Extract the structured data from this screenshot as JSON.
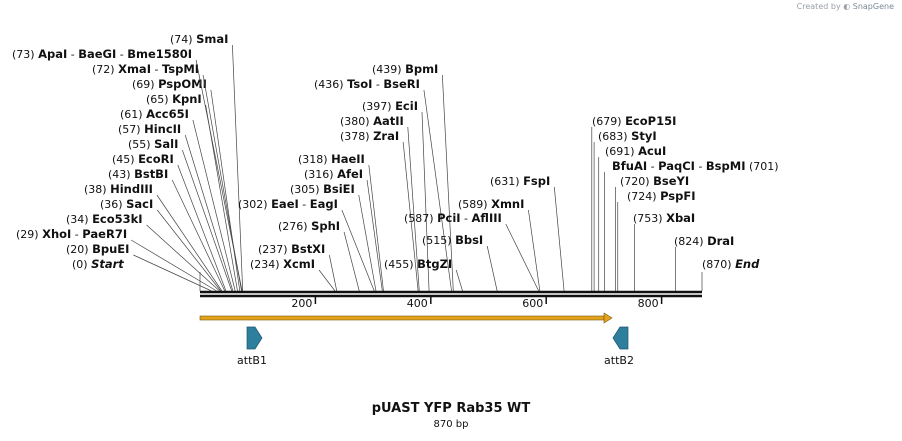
{
  "credit": {
    "prefix": "Created by",
    "brand": "SnapGene"
  },
  "title": "pUAST YFP Rab35 WT",
  "length_label": "870 bp",
  "length": 870,
  "site_rows": [
    {
      "items": [
        {
          "name": "Start",
          "pos": "(0)",
          "bp": 0,
          "italic": true
        }
      ]
    },
    {
      "items": [
        {
          "name": "BpuEI",
          "pos": "(20)",
          "bp": 20
        }
      ]
    },
    {
      "items": [
        {
          "name": "XhoI",
          "pos": "(29)",
          "bp": 29
        },
        {
          "name": "PaeR7I",
          "bp": 29
        }
      ]
    },
    {
      "items": [
        {
          "name": "Eco53kI",
          "pos": "(34)",
          "bp": 34
        }
      ]
    },
    {
      "items": [
        {
          "name": "SacI",
          "pos": "(36)",
          "bp": 36
        }
      ]
    },
    {
      "items": [
        {
          "name": "HindIII",
          "pos": "(38)",
          "bp": 38
        }
      ]
    },
    {
      "items": [
        {
          "name": "BstBI",
          "pos": "(43)",
          "bp": 43
        }
      ]
    },
    {
      "items": [
        {
          "name": "EcoRI",
          "pos": "(45)",
          "bp": 45
        }
      ]
    },
    {
      "items": [
        {
          "name": "SalI",
          "pos": "(55)",
          "bp": 55
        }
      ]
    },
    {
      "items": [
        {
          "name": "HincII",
          "pos": "(57)",
          "bp": 57
        }
      ]
    },
    {
      "items": [
        {
          "name": "Acc65I",
          "pos": "(61)",
          "bp": 61
        }
      ]
    },
    {
      "items": [
        {
          "name": "KpnI",
          "pos": "(65)",
          "bp": 65
        }
      ]
    },
    {
      "items": [
        {
          "name": "PspOMI",
          "pos": "(69)",
          "bp": 69
        }
      ]
    },
    {
      "items": [
        {
          "name": "XmaI",
          "pos": "(72)",
          "bp": 72
        },
        {
          "name": "TspMI",
          "bp": 72
        }
      ]
    },
    {
      "items": [
        {
          "name": "ApaI",
          "pos": "(73)",
          "bp": 73
        },
        {
          "name": "BaeGI",
          "bp": 73
        },
        {
          "name": "Bme1580I",
          "bp": 73
        }
      ]
    },
    {
      "items": [
        {
          "name": "SmaI",
          "pos": "(74)",
          "bp": 74
        }
      ]
    },
    {
      "items": [
        {
          "name": "EaeI",
          "pos": "(302)",
          "bp": 302
        },
        {
          "name": "EagI",
          "bp": 302
        }
      ]
    },
    {
      "items": [
        {
          "name": "XcmI",
          "pos": "(234)",
          "bp": 234
        }
      ]
    },
    {
      "items": [
        {
          "name": "BstXI",
          "pos": "(237)",
          "bp": 237
        }
      ]
    },
    {
      "items": [
        {
          "name": "SphI",
          "pos": "(276)",
          "bp": 276
        }
      ]
    },
    {
      "items": [
        {
          "name": "BsiEI",
          "pos": "(305)",
          "bp": 305
        }
      ]
    },
    {
      "items": [
        {
          "name": "AfeI",
          "pos": "(316)",
          "bp": 316
        }
      ]
    },
    {
      "items": [
        {
          "name": "HaeII",
          "pos": "(318)",
          "bp": 318
        }
      ]
    },
    {
      "items": [
        {
          "name": "ZraI",
          "pos": "(378)",
          "bp": 378
        }
      ]
    },
    {
      "items": [
        {
          "name": "AatII",
          "pos": "(380)",
          "bp": 380
        }
      ]
    },
    {
      "items": [
        {
          "name": "EciI",
          "pos": "(397)",
          "bp": 397
        }
      ]
    },
    {
      "items": [
        {
          "name": "TsoI",
          "pos": "(436)",
          "bp": 436
        },
        {
          "name": "BseRI",
          "bp": 436
        }
      ]
    },
    {
      "items": [
        {
          "name": "BpmI",
          "pos": "(439)",
          "bp": 439
        }
      ]
    },
    {
      "items": [
        {
          "name": "BtgZI",
          "pos": "(455)",
          "bp": 455
        }
      ]
    },
    {
      "items": [
        {
          "name": "BbsI",
          "pos": "(515)",
          "bp": 515
        }
      ]
    },
    {
      "items": [
        {
          "name": "PciI",
          "pos": "(587)",
          "bp": 587
        },
        {
          "name": "AflIII",
          "bp": 587
        }
      ]
    },
    {
      "items": [
        {
          "name": "XmnI",
          "pos": "(589)",
          "bp": 589
        }
      ]
    },
    {
      "items": [
        {
          "name": "FspI",
          "pos": "(631)",
          "bp": 631
        }
      ]
    },
    {
      "items": [
        {
          "name": "EcoP15I",
          "pos": "(679)",
          "bp": 679
        }
      ]
    },
    {
      "items": [
        {
          "name": "StyI",
          "pos": "(683)",
          "bp": 683
        }
      ]
    },
    {
      "items": [
        {
          "name": "AcuI",
          "pos": "(691)",
          "bp": 691
        }
      ]
    },
    {
      "items": [
        {
          "name": "BfuAI",
          "bp": 701
        },
        {
          "name": "PaqCI",
          "bp": 701
        },
        {
          "name": "BspMI",
          "pos": "(701)",
          "bp": 701
        }
      ]
    },
    {
      "items": [
        {
          "name": "BseYI",
          "pos": "(720)",
          "bp": 720
        }
      ]
    },
    {
      "items": [
        {
          "name": "PspFI",
          "pos": "(724)",
          "bp": 724
        }
      ]
    },
    {
      "items": [
        {
          "name": "XbaI",
          "pos": "(753)",
          "bp": 753
        }
      ]
    },
    {
      "items": [
        {
          "name": "DraI",
          "pos": "(824)",
          "bp": 824
        }
      ]
    },
    {
      "items": [
        {
          "name": "End",
          "pos": "(870)",
          "bp": 870,
          "italic": true
        }
      ]
    }
  ],
  "ruler_ticks": [
    {
      "bp": 200,
      "label": "200"
    },
    {
      "bp": 400,
      "label": "400"
    },
    {
      "bp": 600,
      "label": "600"
    },
    {
      "bp": 800,
      "label": "800"
    }
  ],
  "features": [
    {
      "name": "attB1",
      "direction": "forward",
      "bp": 90
    },
    {
      "name": "attB2",
      "direction": "reverse",
      "bp": 730
    }
  ],
  "colors": {
    "line": "#444444",
    "backbone": "#111111",
    "arrow": "#e2a21a",
    "feature": "#2e7f9e"
  }
}
